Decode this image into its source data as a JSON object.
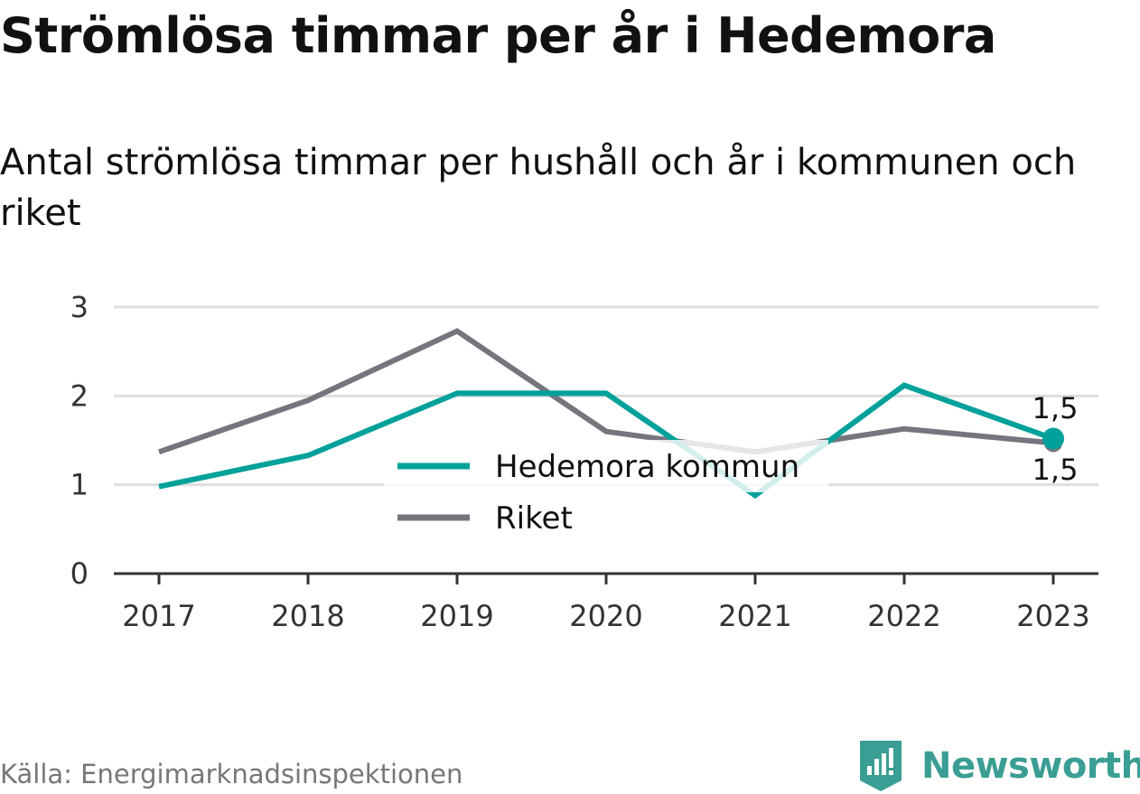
{
  "title": "Strömlösa timmar per år i Hedemora",
  "subtitle": "Antal strömlösa timmar per hushåll och år i kommunen och riket",
  "source": "Källa: Energimarknadsinspektionen",
  "brand": {
    "name": "Newsworthy",
    "icon": "newsworthy-logo-icon"
  },
  "colors": {
    "hedemora": "#00a19a",
    "riket": "#76757d",
    "grid": "#dedede",
    "axis": "#333333"
  },
  "chart_data": {
    "type": "line",
    "x": [
      "2017",
      "2018",
      "2019",
      "2020",
      "2021",
      "2022",
      "2023"
    ],
    "yticks": [
      "0",
      "1",
      "2",
      "3"
    ],
    "ylim": [
      0,
      3
    ],
    "grid": true,
    "legend_position": "center",
    "series": [
      {
        "name": "Hedemora kommun",
        "values": [
          0.98,
          1.33,
          2.03,
          2.03,
          0.88,
          2.12,
          1.52
        ],
        "end_label": "1,5",
        "color": "#00a19a"
      },
      {
        "name": "Riket",
        "values": [
          1.37,
          1.95,
          2.73,
          1.6,
          1.37,
          1.63,
          1.47
        ],
        "end_label": "1,5",
        "color": "#76757d"
      }
    ]
  }
}
